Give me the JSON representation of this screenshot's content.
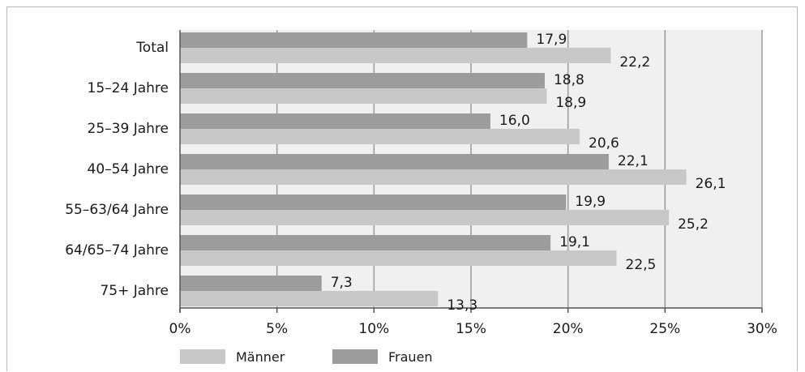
{
  "chart_data": {
    "type": "bar",
    "orientation": "horizontal",
    "categories": [
      "Total",
      "15–24 Jahre",
      "25–39 Jahre",
      "40–54 Jahre",
      "55–63/64 Jahre",
      "64/65–74 Jahre",
      "75+ Jahre"
    ],
    "series": [
      {
        "name": "Frauen",
        "color": "#9c9c9c",
        "values": [
          17.9,
          18.8,
          16.0,
          22.1,
          19.9,
          19.1,
          7.3
        ],
        "labels": [
          "17,9",
          "18,8",
          "16,0",
          "22,1",
          "19,9",
          "19,1",
          "7,3"
        ]
      },
      {
        "name": "Männer",
        "color": "#c8c8c8",
        "values": [
          22.2,
          18.9,
          20.6,
          26.1,
          25.2,
          22.5,
          13.3
        ],
        "labels": [
          "22,2",
          "18,9",
          "20,6",
          "26,1",
          "25,2",
          "22,5",
          "13,3"
        ]
      }
    ],
    "xlim": [
      0,
      30
    ],
    "xticks": [
      0,
      5,
      10,
      15,
      20,
      25,
      30
    ],
    "xtick_labels": [
      "0%",
      "5%",
      "10%",
      "15%",
      "20%",
      "25%",
      "30%"
    ],
    "grid": true,
    "legend": {
      "position": "bottom-left",
      "order": [
        "Männer",
        "Frauen"
      ]
    },
    "colors": {
      "plot_background": "#f0f0f0",
      "gridline": "#9a9a9a",
      "axis": "#555555"
    }
  }
}
